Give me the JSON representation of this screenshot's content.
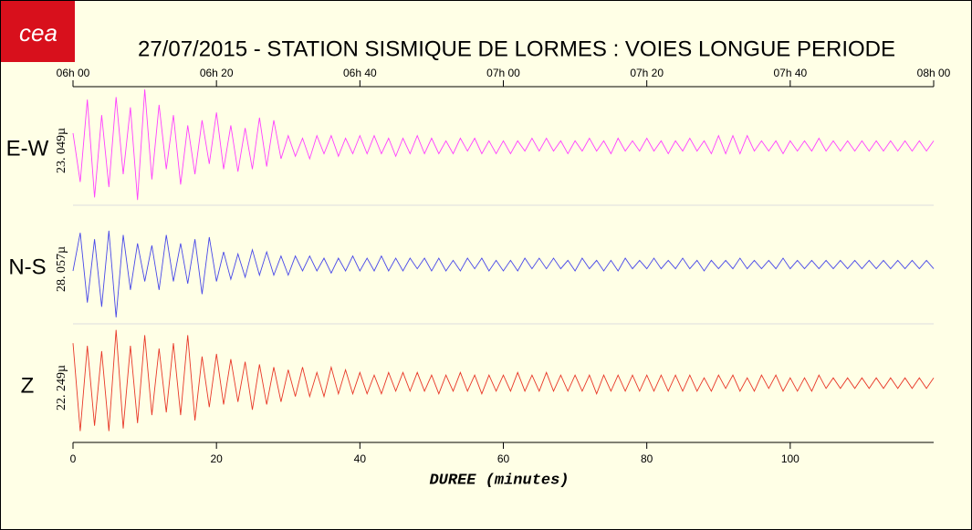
{
  "chart_data": {
    "type": "line",
    "logo": "cea",
    "title": "27/07/2015  -  STATION SISMIQUE DE LORMES : VOIES LONGUE PERIODE",
    "xlabel": "DUREE (minutes)",
    "xlim": [
      0,
      120
    ],
    "xticks": [
      0,
      20,
      40,
      60,
      80,
      100
    ],
    "top_xticks": [
      {
        "value": 0,
        "label": "06h 00"
      },
      {
        "value": 20,
        "label": "06h 20"
      },
      {
        "value": 40,
        "label": "06h 40"
      },
      {
        "value": 60,
        "label": "07h 00"
      },
      {
        "value": 80,
        "label": "07h 20"
      },
      {
        "value": 100,
        "label": "07h 40"
      },
      {
        "value": 120,
        "label": "08h 00"
      }
    ],
    "x": [
      0,
      1,
      2,
      3,
      4,
      5,
      6,
      7,
      8,
      9,
      10,
      11,
      12,
      13,
      14,
      15,
      16,
      17,
      18,
      19,
      20,
      21,
      22,
      23,
      24,
      25,
      26,
      27,
      28,
      29,
      30,
      31,
      32,
      33,
      34,
      35,
      36,
      37,
      38,
      39,
      40,
      41,
      42,
      43,
      44,
      45,
      46,
      47,
      48,
      49,
      50,
      51,
      52,
      53,
      54,
      55,
      56,
      57,
      58,
      59,
      60,
      61,
      62,
      63,
      64,
      65,
      66,
      67,
      68,
      69,
      70,
      71,
      72,
      73,
      74,
      75,
      76,
      77,
      78,
      79,
      80,
      81,
      82,
      83,
      84,
      85,
      86,
      87,
      88,
      89,
      90,
      91,
      92,
      93,
      94,
      95,
      96,
      97,
      98,
      99,
      100,
      101,
      102,
      103,
      104,
      105,
      106,
      107,
      108,
      109,
      110,
      111,
      112,
      113,
      114,
      115,
      116,
      117,
      118,
      119,
      120
    ],
    "series": [
      {
        "name": "E-W",
        "scale_label": "23. 049µ",
        "ylim": [
          -23.049,
          23.049
        ],
        "color": "#ff40ff",
        "values": [
          5,
          -14,
          18,
          -20,
          12,
          -16,
          19,
          -11,
          15,
          -21,
          22,
          -13,
          16,
          -9,
          12,
          -15,
          8,
          -11,
          10,
          -7,
          13,
          -9,
          8,
          -10,
          7,
          -9,
          11,
          -8,
          10,
          -5,
          4,
          -4,
          3,
          -5,
          4,
          -3,
          4,
          -4,
          3,
          -3,
          4,
          -3,
          4,
          -3,
          3,
          -4,
          3,
          -3,
          4,
          -3,
          3,
          -3,
          2,
          -3,
          3,
          -2,
          3,
          -3,
          2,
          -3,
          2,
          -3,
          2,
          -2,
          3,
          -2,
          3,
          -2,
          2,
          -3,
          2,
          -2,
          3,
          -2,
          2,
          -3,
          3,
          -2,
          2,
          -2,
          3,
          -2,
          2,
          -3,
          2,
          -2,
          3,
          -2,
          2,
          -3,
          4,
          -3,
          4,
          -3,
          4,
          -2,
          2,
          -2,
          2,
          -3,
          2,
          -2,
          2,
          -2,
          3,
          -2,
          2,
          -2,
          2,
          -2,
          2,
          -2,
          2,
          -2,
          2,
          -2,
          2,
          -2,
          2,
          -2,
          2
        ]
      },
      {
        "name": "N-S",
        "scale_label": "28. 057µ",
        "ylim": [
          -28.057,
          28.057
        ],
        "color": "#4848e8",
        "values": [
          -3,
          15,
          -18,
          12,
          -20,
          16,
          -25,
          14,
          -12,
          10,
          -8,
          9,
          -12,
          14,
          -8,
          10,
          -9,
          12,
          -14,
          13,
          -8,
          6,
          -7,
          5,
          -6,
          7,
          -5,
          6,
          -5,
          4,
          -5,
          4,
          -3,
          4,
          -3,
          3,
          -4,
          3,
          -3,
          4,
          -3,
          3,
          -3,
          4,
          -3,
          3,
          -3,
          3,
          -2,
          3,
          -3,
          3,
          -3,
          2,
          -3,
          3,
          -2,
          3,
          -3,
          2,
          -3,
          2,
          -3,
          3,
          -2,
          3,
          -2,
          3,
          -2,
          2,
          -3,
          3,
          -2,
          2,
          -3,
          2,
          -3,
          3,
          -2,
          2,
          -2,
          3,
          -2,
          2,
          -2,
          3,
          -2,
          2,
          -3,
          2,
          -2,
          2,
          -2,
          3,
          -2,
          2,
          -2,
          2,
          -2,
          3,
          -2,
          2,
          -2,
          2,
          -2,
          2,
          -2,
          2,
          -2,
          2,
          -2,
          2,
          -2,
          2,
          -2,
          2,
          -2,
          2,
          -2,
          2,
          -2
        ]
      },
      {
        "name": "Z",
        "scale_label": "22. 249µ",
        "ylim": [
          -22.249,
          22.249
        ],
        "color": "#e83828",
        "values": [
          15,
          -18,
          14,
          -16,
          12,
          -18,
          20,
          -17,
          14,
          -15,
          18,
          -12,
          13,
          -11,
          15,
          -12,
          18,
          -14,
          10,
          -9,
          11,
          -8,
          9,
          -7,
          8,
          -10,
          7,
          -8,
          6,
          -7,
          5,
          -5,
          6,
          -5,
          4,
          -5,
          6,
          -4,
          5,
          -4,
          4,
          -4,
          3,
          -4,
          4,
          -3,
          4,
          -3,
          4,
          -3,
          3,
          -4,
          3,
          -3,
          4,
          -3,
          3,
          -4,
          3,
          -3,
          3,
          -3,
          4,
          -3,
          3,
          -3,
          4,
          -3,
          3,
          -3,
          3,
          -3,
          3,
          -4,
          3,
          -3,
          3,
          -3,
          3,
          -3,
          3,
          -3,
          3,
          -3,
          3,
          -3,
          3,
          -3,
          2,
          -3,
          3,
          -2,
          3,
          -3,
          2,
          -3,
          3,
          -2,
          3,
          -3,
          2,
          -3,
          2,
          -3,
          3,
          -2,
          2,
          -2,
          2,
          -2,
          2,
          -2,
          2,
          -2,
          2,
          -2,
          2,
          -2,
          2,
          -2,
          2
        ]
      }
    ]
  }
}
